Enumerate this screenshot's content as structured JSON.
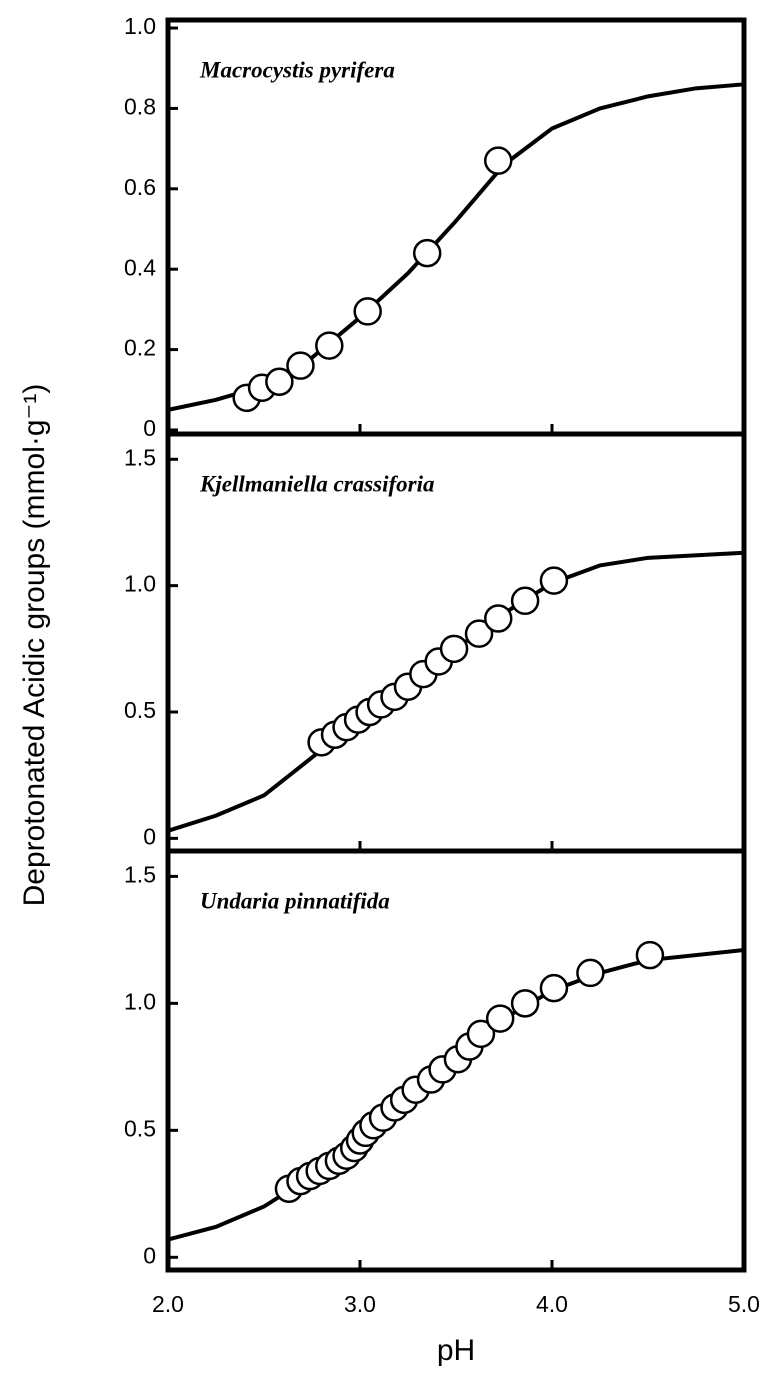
{
  "chart_data": [
    {
      "type": "line",
      "annotation": "Macrocystis pyrifera",
      "xlim": [
        2,
        5
      ],
      "xticks": [
        2,
        3,
        4,
        5
      ],
      "ylim": [
        -0.01,
        1.02
      ],
      "yticks": [
        0,
        0.2,
        0.4,
        0.6,
        0.8,
        {
          "value": 1,
          "label": "1.0"
        }
      ],
      "series": [
        {
          "color": "#000000",
          "marker": "none",
          "x": [
            2.0,
            2.25,
            2.5,
            2.75,
            3.0,
            3.25,
            3.5,
            3.75,
            4.0,
            4.25,
            4.5,
            4.75,
            5.0
          ],
          "values": [
            0.05,
            0.075,
            0.11,
            0.18,
            0.28,
            0.39,
            0.52,
            0.66,
            0.75,
            0.8,
            0.83,
            0.85,
            0.86
          ]
        },
        {
          "color": "#000000",
          "marker": "circle",
          "x": [
            2.41,
            2.49,
            2.58,
            2.69,
            2.84,
            3.04,
            3.35,
            3.72
          ],
          "values": [
            0.08,
            0.105,
            0.12,
            0.16,
            0.21,
            0.295,
            0.44,
            0.67
          ]
        }
      ]
    },
    {
      "type": "line",
      "annotation": "Kjellmaniella crassiforia",
      "ylabel": "Deprotonated Acidic groups (mmol·g⁻¹)",
      "xlim": [
        2,
        5
      ],
      "xticks": [
        2,
        3,
        4,
        5
      ],
      "ylim": [
        -0.05,
        1.6
      ],
      "yticks": [
        0,
        {
          "value": 0.5,
          "label": "0.5"
        },
        {
          "value": 1,
          "label": "1.0"
        },
        {
          "value": 1.5,
          "label": "1.5"
        }
      ],
      "series": [
        {
          "color": "#000000",
          "marker": "none",
          "x": [
            2.0,
            2.25,
            2.5,
            2.75,
            3.0,
            3.25,
            3.5,
            3.75,
            4.0,
            4.25,
            4.5,
            5.0
          ],
          "values": [
            0.03,
            0.09,
            0.17,
            0.32,
            0.47,
            0.6,
            0.75,
            0.89,
            1.01,
            1.08,
            1.11,
            1.13
          ]
        },
        {
          "color": "#000000",
          "marker": "circle",
          "x": [
            2.8,
            2.87,
            2.93,
            2.99,
            3.05,
            3.11,
            3.18,
            3.25,
            3.33,
            3.41,
            3.49,
            3.62,
            3.72,
            3.86,
            4.01
          ],
          "values": [
            0.38,
            0.41,
            0.44,
            0.47,
            0.5,
            0.53,
            0.56,
            0.6,
            0.65,
            0.7,
            0.75,
            0.81,
            0.87,
            0.94,
            1.02
          ]
        }
      ]
    },
    {
      "type": "line",
      "annotation": "Undaria pinnatifida",
      "xlabel": "pH",
      "xlim": [
        2,
        5
      ],
      "xticks": [
        {
          "value": 2,
          "label": "2.0"
        },
        {
          "value": 3,
          "label": "3.0"
        },
        {
          "value": 4,
          "label": "4.0"
        },
        {
          "value": 5,
          "label": "5.0"
        }
      ],
      "ylim": [
        -0.05,
        1.6
      ],
      "yticks": [
        0,
        {
          "value": 0.5,
          "label": "0.5"
        },
        {
          "value": 1,
          "label": "1.0"
        },
        {
          "value": 1.5,
          "label": "1.5"
        }
      ],
      "series": [
        {
          "color": "#000000",
          "marker": "none",
          "x": [
            2.0,
            2.25,
            2.5,
            2.75,
            3.0,
            3.25,
            3.5,
            3.75,
            4.0,
            4.25,
            4.5,
            5.0
          ],
          "values": [
            0.07,
            0.12,
            0.2,
            0.32,
            0.46,
            0.63,
            0.78,
            0.94,
            1.05,
            1.12,
            1.17,
            1.21
          ]
        },
        {
          "color": "#000000",
          "marker": "circle",
          "x": [
            2.63,
            2.69,
            2.74,
            2.79,
            2.84,
            2.89,
            2.93,
            2.97,
            3.0,
            3.03,
            3.07,
            3.12,
            3.18,
            3.23,
            3.29,
            3.37,
            3.43,
            3.51,
            3.57,
            3.63,
            3.73,
            3.86,
            4.01,
            4.2,
            4.51
          ],
          "values": [
            0.27,
            0.3,
            0.32,
            0.34,
            0.36,
            0.38,
            0.4,
            0.43,
            0.46,
            0.49,
            0.52,
            0.55,
            0.59,
            0.62,
            0.66,
            0.7,
            0.74,
            0.78,
            0.83,
            0.88,
            0.94,
            1.0,
            1.06,
            1.12,
            1.19
          ]
        }
      ]
    }
  ]
}
